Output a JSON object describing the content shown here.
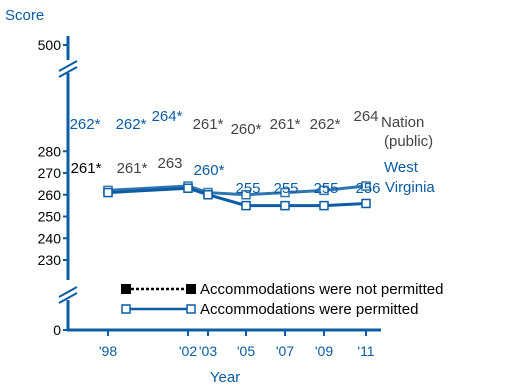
{
  "chart_data": {
    "type": "line",
    "ylabel": "Score",
    "xlabel": "Year",
    "x_tick_labels": [
      "'98",
      "'02",
      "'03",
      "'05",
      "'07",
      "'09",
      "'11"
    ],
    "y_tick_labels": [
      "0",
      "230",
      "240",
      "250",
      "260",
      "270",
      "280",
      "500"
    ],
    "ylim": [
      230,
      280
    ],
    "axis_break": true,
    "grid": false,
    "legend_position": "bottom-right",
    "legend": {
      "not_permitted": "Accommodations were not permitted",
      "permitted": "Accommodations were permitted"
    },
    "series": [
      {
        "name_lines": [
          "Nation",
          "(public)"
        ],
        "color": "#2F75B0",
        "values": [
          262,
          262,
          264,
          261,
          260,
          261,
          262,
          264
        ],
        "labels": [
          "262*",
          "262*",
          "264*",
          "261*",
          "260*",
          "261*",
          "262*",
          "264"
        ]
      },
      {
        "name_lines": [
          "West",
          "Virginia"
        ],
        "color": "#0A5CA4",
        "values": [
          261,
          261,
          263,
          260,
          255,
          255,
          255,
          256
        ],
        "labels": [
          "261*",
          "261*",
          "263",
          "260*",
          "255",
          "255",
          "255",
          "256"
        ]
      }
    ],
    "colors": {
      "axis": "#0A5CA4",
      "text": "#000000",
      "nation_label": "#444444"
    }
  }
}
